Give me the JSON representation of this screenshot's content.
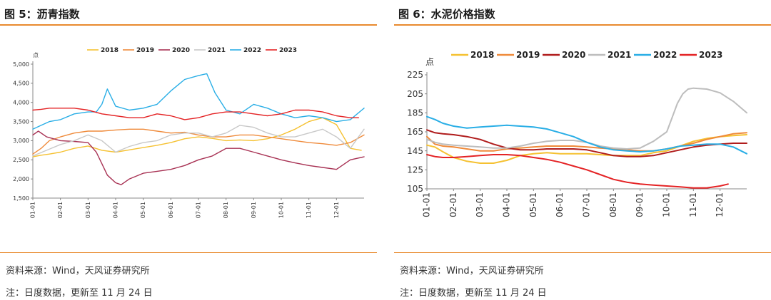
{
  "panels": [
    {
      "title": "图 5：沥青指数",
      "source": "资料来源：Wind，天风证券研究所",
      "note": "注：日度数据，更新至 11 月 24 日"
    },
    {
      "title": "图 6：水泥价格指数",
      "source": "资料来源：Wind，天风证券研究所",
      "note": "注：日度数据，更新至 11 月 24 日"
    }
  ],
  "chart_data": [
    {
      "type": "line",
      "unit_label": "点",
      "ylim": [
        1500,
        5000
      ],
      "yticks": [
        "1,500",
        "2,000",
        "2,500",
        "3,000",
        "3,500",
        "4,000",
        "4,500",
        "5,000"
      ],
      "ytick_values": [
        1500,
        2000,
        2500,
        3000,
        3500,
        4000,
        4500,
        5000
      ],
      "x_categories": [
        "01-01",
        "02-01",
        "03-01",
        "04-01",
        "05-01",
        "06-01",
        "07-01",
        "08-01",
        "09-01",
        "10-01",
        "11-01",
        "12-01"
      ],
      "xlim": [
        0,
        12
      ],
      "grid": false,
      "legend_position": "top",
      "series": [
        {
          "name": "2018",
          "color": "#f5c131",
          "x": [
            0,
            0.3,
            0.6,
            1,
            1.5,
            2,
            2.5,
            3,
            3.5,
            4,
            4.5,
            5,
            5.5,
            6,
            6.5,
            7,
            7.5,
            8,
            8.5,
            9,
            9.5,
            10,
            10.5,
            11,
            11.5,
            11.9
          ],
          "values": [
            2580,
            2620,
            2650,
            2700,
            2800,
            2860,
            2750,
            2700,
            2760,
            2820,
            2880,
            2950,
            3050,
            3100,
            3060,
            3000,
            3020,
            3000,
            3050,
            3150,
            3300,
            3500,
            3600,
            3420,
            2800,
            2750
          ]
        },
        {
          "name": "2019",
          "color": "#ef8a3a",
          "x": [
            0,
            0.3,
            0.6,
            1,
            1.5,
            2,
            2.5,
            3,
            3.5,
            4,
            4.5,
            5,
            5.5,
            6,
            6.5,
            7,
            7.5,
            8,
            8.5,
            9,
            9.5,
            10,
            10.5,
            11,
            11.5,
            12
          ],
          "values": [
            2650,
            2800,
            3000,
            3100,
            3200,
            3250,
            3250,
            3280,
            3300,
            3300,
            3250,
            3200,
            3220,
            3150,
            3100,
            3100,
            3150,
            3150,
            3100,
            3050,
            3000,
            2950,
            2920,
            2880,
            2950,
            3150
          ]
        },
        {
          "name": "2020",
          "color": "#a83254",
          "x": [
            0,
            0.2,
            0.5,
            1,
            1.5,
            2,
            2.3,
            2.5,
            2.7,
            3,
            3.2,
            3.5,
            4,
            4.5,
            5,
            5.5,
            6,
            6.5,
            7,
            7.5,
            8,
            8.5,
            9,
            9.5,
            10,
            10.5,
            11,
            11.5,
            12
          ],
          "values": [
            3150,
            3250,
            3100,
            3000,
            2980,
            2950,
            2700,
            2400,
            2100,
            1900,
            1850,
            2000,
            2150,
            2200,
            2250,
            2350,
            2500,
            2600,
            2800,
            2800,
            2700,
            2600,
            2500,
            2420,
            2350,
            2300,
            2250,
            2500,
            2580
          ]
        },
        {
          "name": "2021",
          "color": "#c8c8c8",
          "x": [
            0,
            0.5,
            1,
            1.5,
            2,
            2.5,
            3,
            3.5,
            4,
            4.5,
            5,
            5.5,
            6,
            6.5,
            7,
            7.5,
            8,
            8.5,
            9,
            9.5,
            10,
            10.5,
            11,
            11.5,
            12
          ],
          "values": [
            2600,
            2750,
            2900,
            3000,
            3150,
            3000,
            2700,
            2850,
            2950,
            3000,
            3150,
            3200,
            3200,
            3100,
            3200,
            3400,
            3350,
            3200,
            3100,
            3100,
            3200,
            3300,
            3100,
            2800,
            3300
          ]
        },
        {
          "name": "2022",
          "color": "#29aee6",
          "x": [
            0,
            0.3,
            0.6,
            1,
            1.5,
            2,
            2.3,
            2.5,
            2.7,
            3,
            3.5,
            4,
            4.5,
            5,
            5.5,
            6,
            6.3,
            6.6,
            7,
            7.5,
            8,
            8.5,
            9,
            9.5,
            10,
            10.5,
            11,
            11.5,
            12
          ],
          "values": [
            3300,
            3400,
            3500,
            3550,
            3700,
            3750,
            3750,
            3950,
            4350,
            3900,
            3800,
            3850,
            3950,
            4300,
            4600,
            4700,
            4750,
            4250,
            3800,
            3700,
            3950,
            3850,
            3700,
            3600,
            3650,
            3600,
            3500,
            3550,
            3850
          ]
        },
        {
          "name": "2023",
          "color": "#e42325",
          "x": [
            0,
            0.3,
            0.6,
            1,
            1.5,
            2,
            2.5,
            3,
            3.5,
            4,
            4.5,
            5,
            5.5,
            6,
            6.5,
            7,
            7.5,
            8,
            8.5,
            9,
            9.5,
            10,
            10.5,
            11,
            11.5,
            11.8
          ],
          "values": [
            3800,
            3820,
            3850,
            3850,
            3850,
            3800,
            3700,
            3650,
            3600,
            3600,
            3700,
            3650,
            3550,
            3600,
            3700,
            3750,
            3750,
            3700,
            3650,
            3700,
            3800,
            3800,
            3750,
            3650,
            3600,
            3600
          ]
        }
      ]
    },
    {
      "type": "line",
      "unit_label": "点",
      "ylim": [
        105,
        225
      ],
      "yticks": [
        "105",
        "125",
        "145",
        "165",
        "185",
        "205",
        "225"
      ],
      "ytick_values": [
        105,
        125,
        145,
        165,
        185,
        205,
        225
      ],
      "x_categories": [
        "01-01",
        "02-01",
        "03-01",
        "04-01",
        "05-01",
        "06-01",
        "07-01",
        "08-01",
        "09-01",
        "10-01",
        "11-01",
        "12-01"
      ],
      "xlim": [
        0,
        12
      ],
      "grid": false,
      "legend_position": "top",
      "series": [
        {
          "name": "2018",
          "color": "#f5c131",
          "x": [
            0,
            0.3,
            0.6,
            1,
            1.5,
            2,
            2.5,
            3,
            3.5,
            4,
            4.5,
            5,
            5.5,
            6,
            6.5,
            7,
            7.5,
            8,
            8.5,
            9,
            9.5,
            10,
            10.5,
            11,
            11.5,
            12
          ],
          "values": [
            151,
            149,
            144,
            138,
            134,
            132,
            132,
            135,
            140,
            142,
            143,
            142,
            142,
            142,
            141,
            140,
            140,
            140,
            143,
            145,
            150,
            155,
            158,
            160,
            161,
            162
          ]
        },
        {
          "name": "2019",
          "color": "#ef8a3a",
          "x": [
            0,
            0.3,
            0.6,
            1,
            1.5,
            2,
            2.5,
            3,
            3.5,
            4,
            4.5,
            5,
            5.5,
            6,
            6.5,
            7,
            7.5,
            8,
            8.5,
            9,
            9.5,
            10,
            10.5,
            11,
            11.5,
            12
          ],
          "values": [
            160,
            152,
            150,
            149,
            147,
            145,
            145,
            147,
            148,
            149,
            150,
            150,
            150,
            149,
            148,
            147,
            146,
            145,
            145,
            147,
            150,
            153,
            157,
            160,
            163,
            164
          ]
        },
        {
          "name": "2020",
          "color": "#b01c1c",
          "x": [
            0,
            0.3,
            0.6,
            1,
            1.5,
            2,
            2.5,
            3,
            3.5,
            4,
            4.5,
            5,
            5.5,
            6,
            6.5,
            7,
            7.5,
            8,
            8.5,
            9,
            9.5,
            10,
            10.5,
            11,
            11.5,
            12
          ],
          "values": [
            167,
            164,
            163,
            162,
            160,
            157,
            152,
            148,
            146,
            146,
            147,
            147,
            147,
            146,
            143,
            140,
            139,
            139,
            140,
            143,
            146,
            149,
            151,
            152,
            153,
            153
          ]
        },
        {
          "name": "2021",
          "color": "#bdbdbd",
          "x": [
            0,
            0.3,
            0.6,
            1,
            1.5,
            2,
            2.5,
            3,
            3.5,
            4,
            4.5,
            5,
            5.5,
            6,
            6.5,
            7,
            7.5,
            8,
            8.5,
            9,
            9.2,
            9.4,
            9.6,
            9.8,
            10,
            10.5,
            11,
            11.5,
            12
          ],
          "values": [
            157,
            154,
            152,
            151,
            150,
            149,
            148,
            148,
            150,
            153,
            155,
            156,
            156,
            154,
            150,
            148,
            147,
            148,
            155,
            165,
            180,
            195,
            205,
            210,
            211,
            210,
            206,
            197,
            185
          ]
        },
        {
          "name": "2022",
          "color": "#29aee6",
          "x": [
            0,
            0.3,
            0.6,
            1,
            1.5,
            2,
            2.5,
            3,
            3.5,
            4,
            4.5,
            5,
            5.5,
            6,
            6.5,
            7,
            7.5,
            8,
            8.5,
            9,
            9.5,
            10,
            10.5,
            11,
            11.5,
            12
          ],
          "values": [
            181,
            178,
            174,
            171,
            169,
            170,
            171,
            172,
            171,
            170,
            168,
            164,
            160,
            154,
            149,
            146,
            145,
            144,
            145,
            147,
            150,
            151,
            152,
            152,
            149,
            142
          ]
        },
        {
          "name": "2023",
          "color": "#e42325",
          "x": [
            0,
            0.3,
            0.6,
            1,
            1.5,
            2,
            2.5,
            3,
            3.5,
            4,
            4.5,
            5,
            5.5,
            6,
            6.5,
            7,
            7.5,
            8,
            8.5,
            9,
            9.5,
            10,
            10.5,
            11,
            11.3
          ],
          "values": [
            141,
            139,
            138,
            138,
            139,
            140,
            141,
            141,
            140,
            138,
            136,
            133,
            129,
            125,
            120,
            115,
            112,
            110,
            109,
            108,
            107,
            106,
            106,
            108,
            110
          ]
        }
      ]
    }
  ]
}
